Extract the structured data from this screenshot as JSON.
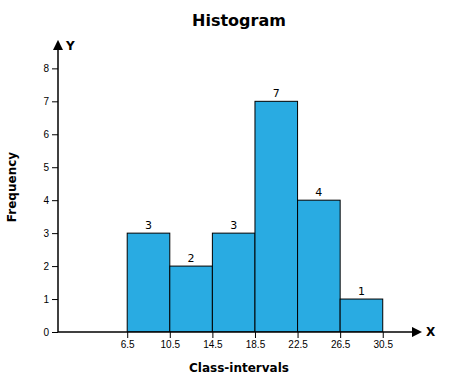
{
  "chart_data": {
    "type": "histogram",
    "title": "Histogram",
    "x_label": "Class-intervals",
    "y_label": "Frequency",
    "bins": [
      6.5,
      10.5,
      14.5,
      18.5,
      22.5,
      26.5,
      30.5
    ],
    "values": [
      3,
      2,
      3,
      7,
      4,
      1
    ],
    "color": "#29ABE2",
    "xlim": [
      0,
      34
    ],
    "ylim": [
      0,
      8.8
    ],
    "xticks": [
      6.5,
      10.5,
      14.5,
      18.5,
      22.5,
      26.5,
      30.5
    ],
    "yticks": [
      0,
      1,
      2,
      3,
      4,
      5,
      6,
      7,
      8
    ],
    "data_labels": true,
    "annotations": [
      "X",
      "Y"
    ]
  }
}
